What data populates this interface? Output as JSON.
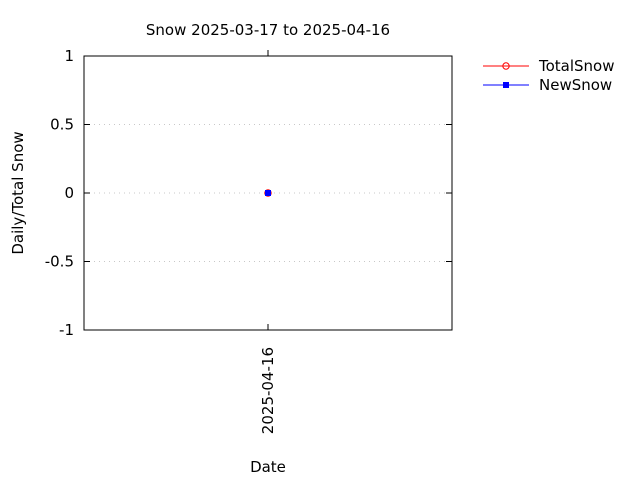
{
  "chart_data": {
    "type": "line",
    "title": "Snow 2025-03-17 to 2025-04-16",
    "xlabel": "Date",
    "ylabel": "Daily/Total Snow",
    "ylim": [
      -1,
      1
    ],
    "yticks": [
      1,
      0.5,
      0,
      -0.5,
      -1
    ],
    "ytick_labels": [
      "1",
      "0.5",
      "0",
      "-0.5",
      "-1"
    ],
    "categories": [
      "2025-04-16"
    ],
    "grid": true,
    "legend_position": "outside-top-right",
    "series": [
      {
        "name": "TotalSnow",
        "values": [
          0
        ],
        "color": "#ff0000",
        "marker": "open-circle"
      },
      {
        "name": "NewSnow",
        "values": [
          0
        ],
        "color": "#0000ff",
        "marker": "filled-square"
      }
    ]
  }
}
